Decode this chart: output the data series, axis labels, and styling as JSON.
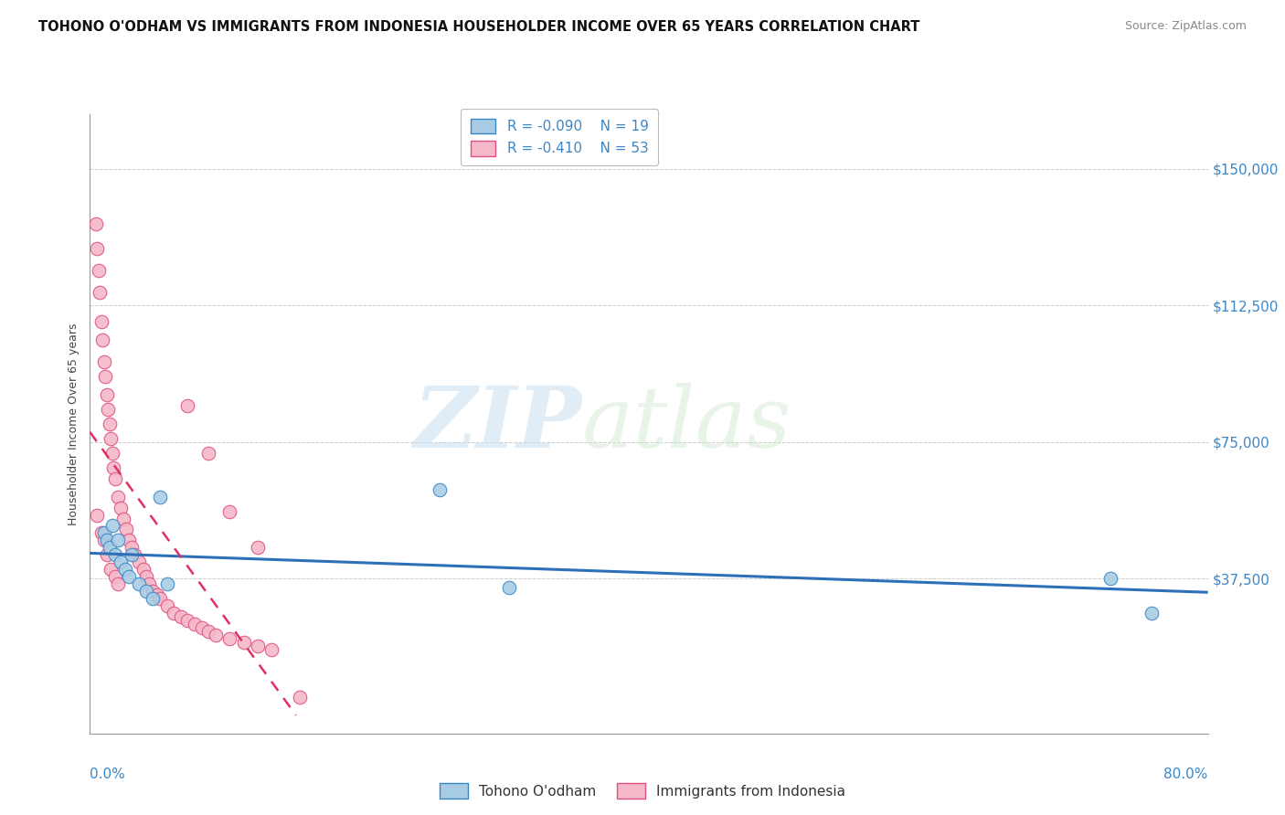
{
  "title": "TOHONO O'ODHAM VS IMMIGRANTS FROM INDONESIA HOUSEHOLDER INCOME OVER 65 YEARS CORRELATION CHART",
  "source": "Source: ZipAtlas.com",
  "ylabel": "Householder Income Over 65 years",
  "y_ticks": [
    0,
    37500,
    75000,
    112500,
    150000
  ],
  "y_tick_labels": [
    "",
    "$37,500",
    "$75,000",
    "$112,500",
    "$150,000"
  ],
  "xmin": 0.0,
  "xmax": 0.8,
  "ymin": -5000,
  "ymax": 165000,
  "watermark_zip": "ZIP",
  "watermark_atlas": "atlas",
  "legend_r1_val": "-0.090",
  "legend_n1_val": "19",
  "legend_r2_val": "-0.410",
  "legend_n2_val": "53",
  "color_blue_fill": "#a8cce4",
  "color_blue_edge": "#3a87c8",
  "color_pink_fill": "#f4b8c8",
  "color_pink_edge": "#e05080",
  "color_blue_line": "#2e6fba",
  "color_pink_line": "#e03060",
  "tohono_x": [
    0.01,
    0.012,
    0.014,
    0.016,
    0.018,
    0.02,
    0.022,
    0.025,
    0.028,
    0.03,
    0.035,
    0.04,
    0.045,
    0.05,
    0.055,
    0.25,
    0.3,
    0.73,
    0.76
  ],
  "tohono_y": [
    50000,
    48000,
    46000,
    52000,
    44000,
    48000,
    42000,
    40000,
    38000,
    44000,
    36000,
    34000,
    32000,
    60000,
    36000,
    62000,
    35000,
    37500,
    28000
  ],
  "indonesia_x": [
    0.004,
    0.005,
    0.006,
    0.007,
    0.008,
    0.009,
    0.01,
    0.011,
    0.012,
    0.013,
    0.014,
    0.015,
    0.016,
    0.017,
    0.018,
    0.02,
    0.022,
    0.024,
    0.026,
    0.028,
    0.03,
    0.032,
    0.035,
    0.038,
    0.04,
    0.042,
    0.045,
    0.048,
    0.05,
    0.055,
    0.06,
    0.065,
    0.07,
    0.075,
    0.08,
    0.085,
    0.09,
    0.1,
    0.11,
    0.12,
    0.13,
    0.07,
    0.085,
    0.1,
    0.12,
    0.005,
    0.008,
    0.01,
    0.012,
    0.015,
    0.018,
    0.02,
    0.15
  ],
  "indonesia_y": [
    135000,
    128000,
    122000,
    116000,
    108000,
    103000,
    97000,
    93000,
    88000,
    84000,
    80000,
    76000,
    72000,
    68000,
    65000,
    60000,
    57000,
    54000,
    51000,
    48000,
    46000,
    44000,
    42000,
    40000,
    38000,
    36000,
    34000,
    33000,
    32000,
    30000,
    28000,
    27000,
    26000,
    25000,
    24000,
    23000,
    22000,
    21000,
    20000,
    19000,
    18000,
    85000,
    72000,
    56000,
    46000,
    55000,
    50000,
    48000,
    44000,
    40000,
    38000,
    36000,
    5000
  ]
}
